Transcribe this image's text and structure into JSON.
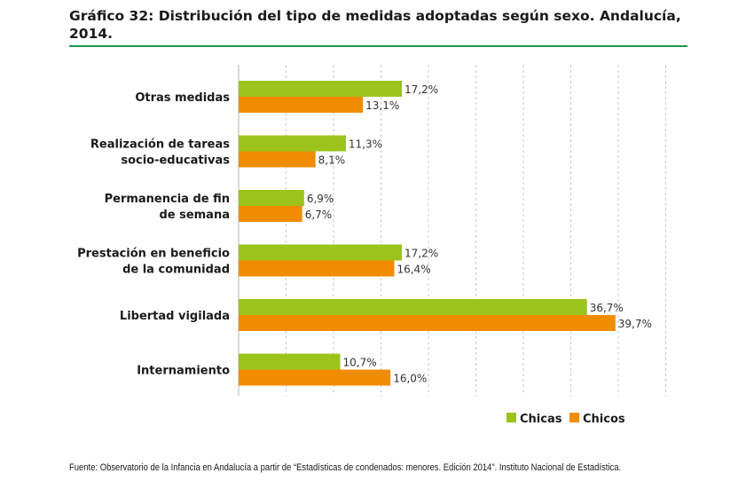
{
  "title": "Gráfico 32: Distribución del tipo de medidas adoptadas según sexo. Andalucía, 2014.",
  "source": "Fuente: Observatorio de la Infancia en Andalucía a partir de “Estadísticas de condenados: menores. Edición 2014”. Instituto Nacional de Estadística.",
  "colors": {
    "accent": "#1e9a4a",
    "chicas": "#9bc31c",
    "chicos": "#f08c00",
    "grid": "#c8c8c8"
  },
  "chart_data": {
    "type": "bar",
    "orientation": "horizontal",
    "categories": [
      [
        "Otras medidas"
      ],
      [
        "Realización de tareas",
        "socio-educativas"
      ],
      [
        "Permanencia de fin",
        "de semana"
      ],
      [
        "Prestación en beneficio",
        "de la comunidad"
      ],
      [
        "Libertad vigilada"
      ],
      [
        "Internamiento"
      ]
    ],
    "series": [
      {
        "name": "Chicas",
        "color": "#9bc31c",
        "values": [
          17.2,
          11.3,
          6.9,
          17.2,
          36.7,
          10.7
        ],
        "labels": [
          "17,2%",
          "11,3%",
          "6,9%",
          "17,2%",
          "36,7%",
          "10,7%"
        ]
      },
      {
        "name": "Chicos",
        "color": "#f08c00",
        "values": [
          13.1,
          8.1,
          6.7,
          16.4,
          39.7,
          16.0
        ],
        "labels": [
          "13,1%",
          "8,1%",
          "6,7%",
          "16,4%",
          "39,7%",
          "16,0%"
        ]
      }
    ],
    "xlim": [
      0,
      45
    ],
    "grid": true,
    "legend_position": "bottom-right"
  }
}
